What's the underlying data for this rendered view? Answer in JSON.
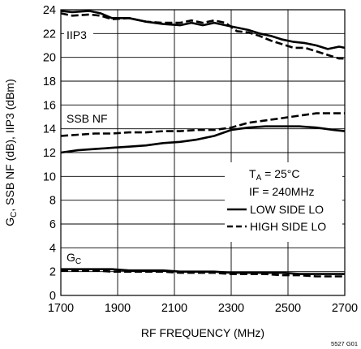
{
  "chart_data": {
    "type": "line",
    "xlabel": "RF FREQUENCY (MHz)",
    "ylabel": "G",
    "ylabel_sub": "C",
    "ylabel_rest": ", SSB NF (dB), IIP3 (dBm)",
    "xlim": [
      1700,
      2700
    ],
    "ylim": [
      0,
      24
    ],
    "xticks": [
      "1700",
      "1900",
      "2100",
      "2300",
      "2500",
      "2700"
    ],
    "yticks": [
      "0",
      "2",
      "4",
      "6",
      "8",
      "10",
      "12",
      "14",
      "16",
      "18",
      "20",
      "22",
      "24"
    ],
    "grid": true,
    "annotations": {
      "iip3": "IIP3",
      "ssb_nf": "SSB NF",
      "gc_main": "G",
      "gc_sub": "C"
    },
    "legend": {
      "placement": "center-right",
      "ta_main": "T",
      "ta_sub": "A",
      "ta_rest": " = 25°C",
      "if_text": "IF = 240MHz",
      "low_label": "LOW SIDE LO",
      "high_label": "HIGH SIDE LO"
    },
    "figure_id": "5527 G01",
    "series": [
      {
        "name": "LOW SIDE LO",
        "style": "solid",
        "group": "IIP3",
        "x": [
          1700,
          1740,
          1800,
          1840,
          1880,
          1940,
          2000,
          2060,
          2120,
          2160,
          2200,
          2240,
          2280,
          2320,
          2360,
          2400,
          2440,
          2480,
          2520,
          2560,
          2600,
          2640,
          2680,
          2700
        ],
        "y": [
          23.9,
          23.8,
          23.9,
          23.7,
          23.3,
          23.3,
          23.0,
          22.8,
          22.7,
          22.9,
          22.7,
          22.9,
          22.7,
          22.5,
          22.3,
          22.0,
          21.8,
          21.5,
          21.3,
          21.2,
          21.0,
          20.7,
          20.9,
          20.8
        ]
      },
      {
        "name": "HIGH SIDE LO",
        "style": "dashed",
        "group": "IIP3",
        "x": [
          1700,
          1740,
          1800,
          1840,
          1880,
          1940,
          2000,
          2060,
          2120,
          2160,
          2200,
          2240,
          2280,
          2320,
          2360,
          2400,
          2440,
          2480,
          2520,
          2560,
          2600,
          2640,
          2680,
          2700
        ],
        "y": [
          23.7,
          23.5,
          23.6,
          23.5,
          23.2,
          23.3,
          23.0,
          22.9,
          22.9,
          23.1,
          22.9,
          23.1,
          22.9,
          22.2,
          22.1,
          21.8,
          21.4,
          21.1,
          20.8,
          20.8,
          20.5,
          20.2,
          19.9,
          19.9
        ]
      },
      {
        "name": "LOW SIDE LO",
        "style": "solid",
        "group": "SSB NF",
        "x": [
          1700,
          1760,
          1820,
          1880,
          1940,
          2000,
          2060,
          2120,
          2180,
          2240,
          2300,
          2360,
          2420,
          2480,
          2540,
          2600,
          2660,
          2700
        ],
        "y": [
          12.0,
          12.2,
          12.3,
          12.4,
          12.5,
          12.6,
          12.8,
          12.9,
          13.1,
          13.4,
          13.9,
          14.1,
          14.2,
          14.2,
          14.2,
          14.1,
          13.9,
          13.8
        ]
      },
      {
        "name": "HIGH SIDE LO",
        "style": "dashed",
        "group": "SSB NF",
        "x": [
          1700,
          1760,
          1820,
          1880,
          1940,
          2000,
          2060,
          2120,
          2180,
          2240,
          2300,
          2360,
          2420,
          2480,
          2540,
          2600,
          2660,
          2700
        ],
        "y": [
          13.4,
          13.5,
          13.6,
          13.6,
          13.7,
          13.7,
          13.8,
          13.8,
          13.9,
          13.9,
          14.1,
          14.5,
          14.7,
          14.9,
          15.1,
          15.3,
          15.3,
          15.3
        ]
      },
      {
        "name": "LOW SIDE LO",
        "style": "solid",
        "group": "GC",
        "x": [
          1700,
          1760,
          1820,
          1880,
          1940,
          2000,
          2060,
          2120,
          2180,
          2240,
          2300,
          2360,
          2420,
          2480,
          2540,
          2600,
          2660,
          2700
        ],
        "y": [
          2.2,
          2.2,
          2.2,
          2.2,
          2.1,
          2.1,
          2.1,
          2.0,
          2.0,
          2.0,
          1.9,
          1.9,
          1.9,
          1.9,
          1.8,
          1.8,
          1.8,
          1.8
        ]
      },
      {
        "name": "HIGH SIDE LO",
        "style": "dashed",
        "group": "GC",
        "x": [
          1700,
          1760,
          1820,
          1880,
          1940,
          2000,
          2060,
          2120,
          2180,
          2240,
          2300,
          2360,
          2420,
          2480,
          2540,
          2600,
          2660,
          2700
        ],
        "y": [
          2.1,
          2.1,
          2.1,
          2.0,
          2.0,
          2.0,
          2.0,
          1.9,
          1.9,
          1.9,
          1.8,
          1.8,
          1.8,
          1.7,
          1.7,
          1.6,
          1.6,
          1.6
        ]
      }
    ]
  }
}
